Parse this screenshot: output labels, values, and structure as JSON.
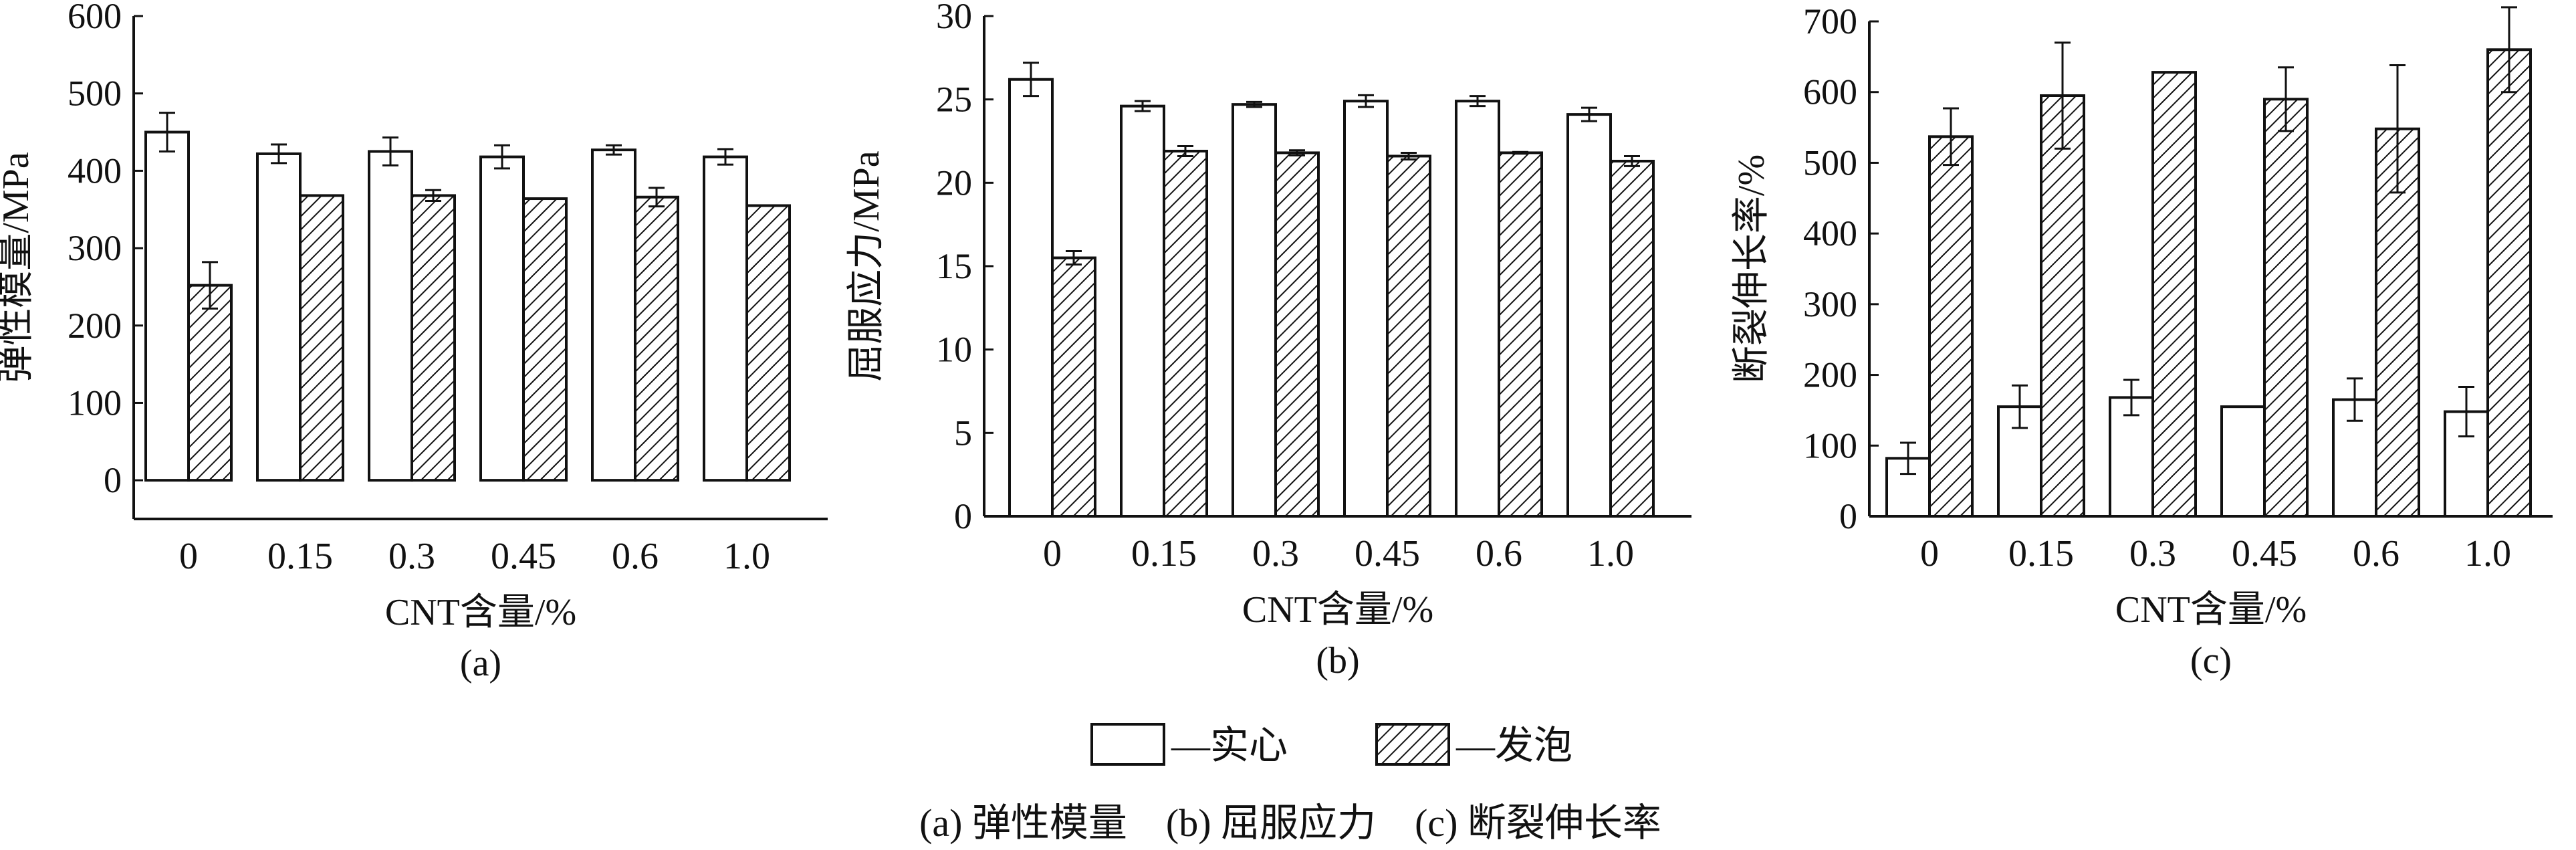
{
  "legend": {
    "solid_label": "—实心",
    "foam_label": "—发泡"
  },
  "caption": "(a) 弹性模量　(b) 屈服应力　(c) 断裂伸长率",
  "chart_data": [
    {
      "type": "bar",
      "panel_label": "(a)",
      "categories": [
        "0",
        "0.15",
        "0.3",
        "0.45",
        "0.6",
        "1.0"
      ],
      "xlabel": "CNT含量/%",
      "ylabel": "弹性模量/MPa",
      "ylim": [
        -50,
        600
      ],
      "yticks": [
        0,
        100,
        200,
        300,
        400,
        500,
        600
      ],
      "grid": false,
      "series": [
        {
          "name": "实心",
          "values": [
            450,
            422,
            425,
            418,
            427,
            418
          ],
          "errors": [
            25,
            12,
            18,
            15,
            6,
            10
          ]
        },
        {
          "name": "发泡",
          "values": [
            252,
            368,
            368,
            364,
            366,
            355
          ],
          "errors": [
            30,
            0,
            7,
            0,
            12,
            0
          ]
        }
      ]
    },
    {
      "type": "bar",
      "panel_label": "(b)",
      "categories": [
        "0",
        "0.15",
        "0.3",
        "0.45",
        "0.6",
        "1.0"
      ],
      "xlabel": "CNT含量/%",
      "ylabel": "屈服应力/MPa",
      "ylim": [
        0,
        30
      ],
      "yticks": [
        0,
        5,
        10,
        15,
        20,
        25,
        30
      ],
      "grid": false,
      "series": [
        {
          "name": "实心",
          "values": [
            26.2,
            24.6,
            24.7,
            24.9,
            24.9,
            24.1
          ],
          "errors": [
            1.0,
            0.3,
            0.15,
            0.35,
            0.3,
            0.4
          ]
        },
        {
          "name": "发泡",
          "values": [
            15.5,
            21.9,
            21.8,
            21.6,
            21.8,
            21.3
          ],
          "errors": [
            0.4,
            0.3,
            0.15,
            0.2,
            0.05,
            0.3
          ]
        }
      ]
    },
    {
      "type": "bar",
      "panel_label": "(c)",
      "categories": [
        "0",
        "0.15",
        "0.3",
        "0.45",
        "0.6",
        "1.0"
      ],
      "xlabel": "CNT含量/%",
      "ylabel": "断裂伸长率/%",
      "ylim": [
        0,
        700
      ],
      "yticks": [
        0,
        100,
        200,
        300,
        400,
        500,
        600,
        700
      ],
      "grid": false,
      "series": [
        {
          "name": "实心",
          "values": [
            82,
            155,
            168,
            155,
            165,
            148
          ],
          "errors": [
            22,
            30,
            25,
            0,
            30,
            35
          ]
        },
        {
          "name": "发泡",
          "values": [
            537,
            595,
            628,
            590,
            548,
            660
          ],
          "errors": [
            40,
            75,
            0,
            45,
            90,
            60
          ]
        }
      ]
    }
  ]
}
